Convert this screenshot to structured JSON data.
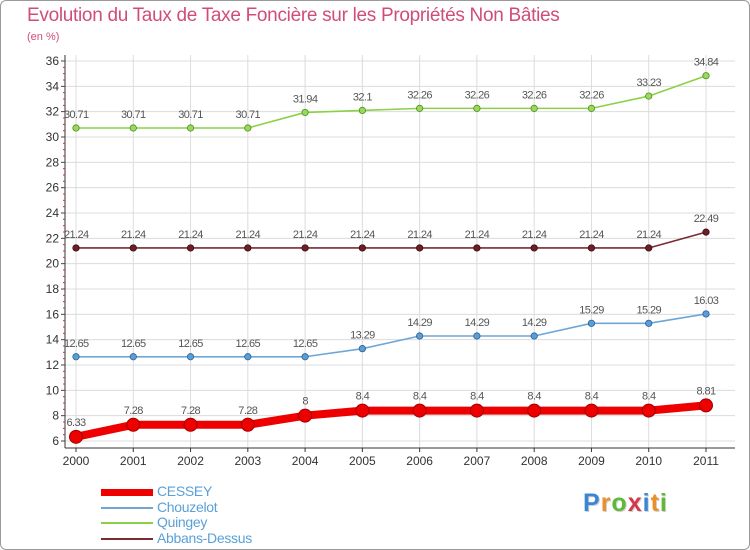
{
  "title": "Evolution du Taux de Taxe Foncière sur les Propriétés Non Bâties",
  "subtitle": "(en %)",
  "chart_data": {
    "type": "line",
    "categories": [
      "2000",
      "2001",
      "2002",
      "2003",
      "2004",
      "2005",
      "2006",
      "2007",
      "2008",
      "2009",
      "2010",
      "2011"
    ],
    "ylim": [
      6,
      36
    ],
    "yticks": [
      6,
      8,
      10,
      12,
      14,
      16,
      18,
      20,
      22,
      24,
      26,
      28,
      30,
      32,
      34,
      36
    ],
    "grid": true,
    "series": [
      {
        "name": "Quingey",
        "color": "#8cd048",
        "marker_fill": "#98d85a",
        "marker_stroke": "#4f8f1f",
        "values": [
          30.71,
          30.71,
          30.71,
          30.71,
          31.94,
          32.1,
          32.26,
          32.26,
          32.26,
          32.26,
          33.23,
          34.84
        ],
        "labels": [
          "30.71",
          "30.71",
          "30.71",
          "30.71",
          "31.94",
          "32.1",
          "32.26",
          "32.26",
          "32.26",
          "32.26",
          "33.23",
          "34.84"
        ],
        "thick": false
      },
      {
        "name": "Abbans-Dessus",
        "color": "#7b2a32",
        "marker_fill": "#6d1f28",
        "marker_stroke": "#3c0c12",
        "values": [
          21.24,
          21.24,
          21.24,
          21.24,
          21.24,
          21.24,
          21.24,
          21.24,
          21.24,
          21.24,
          21.24,
          22.49
        ],
        "labels": [
          "21.24",
          "21.24",
          "21.24",
          "21.24",
          "21.24",
          "21.24",
          "21.24",
          "21.24",
          "21.24",
          "21.24",
          "21.24",
          "22.49"
        ],
        "thick": false
      },
      {
        "name": "Chouzelot",
        "color": "#6fa6d6",
        "marker_fill": "#5a9ed8",
        "marker_stroke": "#2c5f8f",
        "values": [
          12.65,
          12.65,
          12.65,
          12.65,
          12.65,
          13.29,
          14.29,
          14.29,
          14.29,
          15.29,
          15.29,
          16.03
        ],
        "labels": [
          "12.65",
          "12.65",
          "12.65",
          "12.65",
          "12.65",
          "13.29",
          "14.29",
          "14.29",
          "14.29",
          "15.29",
          "15.29",
          "16.03"
        ],
        "thick": false
      },
      {
        "name": "CESSEY",
        "color": "#ee0000",
        "marker_fill": "#ee0000",
        "marker_stroke": "#a00000",
        "values": [
          6.33,
          7.28,
          7.28,
          7.28,
          8,
          8.4,
          8.4,
          8.4,
          8.4,
          8.4,
          8.4,
          8.81
        ],
        "labels": [
          "6.33",
          "7.28",
          "7.28",
          "7.28",
          "8",
          "8.4",
          "8.4",
          "8.4",
          "8.4",
          "8.4",
          "8.4",
          "8.81"
        ],
        "thick": true
      }
    ]
  },
  "legend": [
    {
      "name": "CESSEY",
      "color": "#ee0000",
      "thick": true
    },
    {
      "name": "Chouzelot",
      "color": "#6fa6d6",
      "thick": false
    },
    {
      "name": "Quingey",
      "color": "#8cd048",
      "thick": false
    },
    {
      "name": "Abbans-Dessus",
      "color": "#7b2a32",
      "thick": false
    }
  ],
  "logo": {
    "letters": [
      "P",
      "r",
      "o",
      "x",
      "i",
      "t",
      "i"
    ],
    "colors": [
      "#3a86d4",
      "#e8912c",
      "#5fb83a",
      "#d6364a",
      "#3a86d4",
      "#e8912c",
      "#5fb83a"
    ]
  }
}
